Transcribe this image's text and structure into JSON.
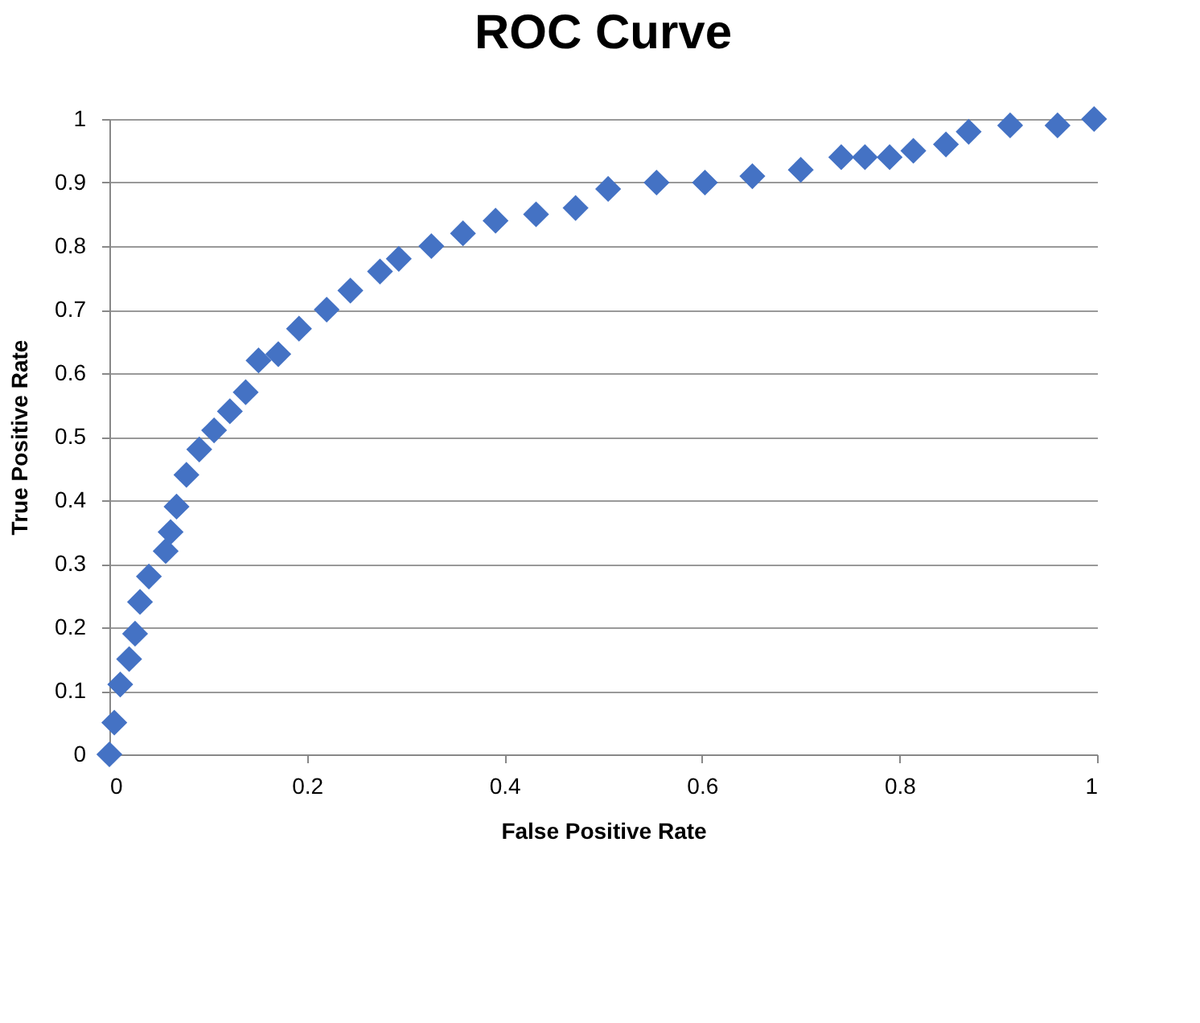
{
  "chart_data": {
    "type": "scatter",
    "title": "ROC Curve",
    "xlabel": "False Positive Rate",
    "ylabel": "True Positive Rate",
    "x": [
      0,
      0.005,
      0.011,
      0.02,
      0.026,
      0.031,
      0.04,
      0.057,
      0.062,
      0.068,
      0.078,
      0.091,
      0.106,
      0.122,
      0.138,
      0.151,
      0.171,
      0.192,
      0.22,
      0.244,
      0.274,
      0.293,
      0.326,
      0.358,
      0.391,
      0.432,
      0.472,
      0.505,
      0.554,
      0.603,
      0.651,
      0.7,
      0.741,
      0.765,
      0.79,
      0.814,
      0.847,
      0.87,
      0.912,
      0.96,
      0.997
    ],
    "values": [
      0,
      0.05,
      0.11,
      0.15,
      0.19,
      0.24,
      0.28,
      0.32,
      0.35,
      0.39,
      0.44,
      0.48,
      0.51,
      0.54,
      0.57,
      0.62,
      0.63,
      0.67,
      0.7,
      0.73,
      0.76,
      0.78,
      0.8,
      0.82,
      0.84,
      0.85,
      0.86,
      0.89,
      0.9,
      0.9,
      0.91,
      0.92,
      0.94,
      0.94,
      0.94,
      0.95,
      0.96,
      0.98,
      0.99,
      0.99,
      1.0
    ],
    "color": "#4472c4",
    "marker": "diamond",
    "xlim": [
      0,
      1
    ],
    "xticks": [
      0,
      0.2,
      0.4,
      0.6,
      0.8,
      1
    ],
    "ylim": [
      0,
      1
    ],
    "yticks": [
      0,
      0.1,
      0.2,
      0.3,
      0.4,
      0.5,
      0.6,
      0.7,
      0.8,
      0.9,
      1
    ],
    "grid": "y"
  }
}
